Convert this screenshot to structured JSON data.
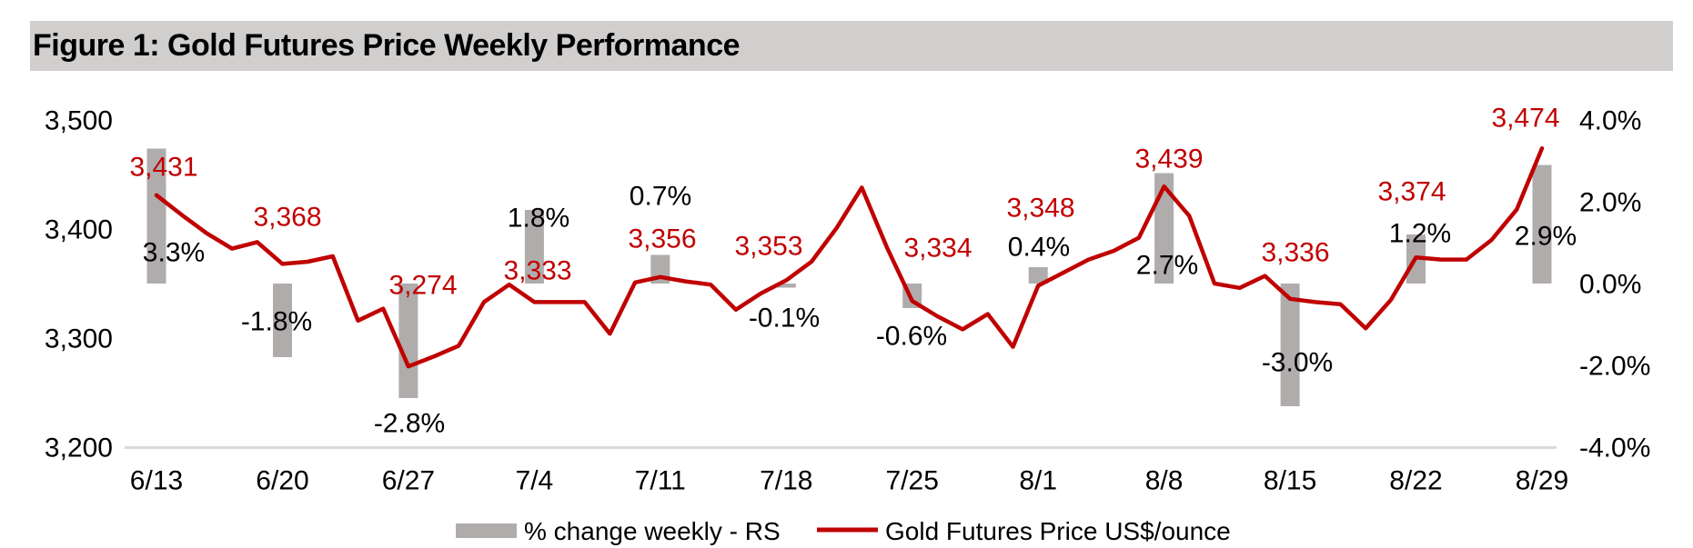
{
  "chart_data": {
    "type": "combo (bar + line, dual axis)",
    "title": "Figure 1: Gold Futures Price Weekly Performance",
    "weeks": [
      "6/13",
      "6/20",
      "6/27",
      "7/4",
      "7/11",
      "7/18",
      "7/25",
      "8/1",
      "8/8",
      "8/15",
      "8/22",
      "8/29"
    ],
    "series": [
      {
        "name": "% change weekly - RS",
        "type": "bar",
        "axis": "right",
        "values": [
          3.3,
          -1.8,
          -2.8,
          1.8,
          0.7,
          -0.1,
          -0.6,
          0.4,
          2.7,
          -3.0,
          1.2,
          2.9
        ],
        "labels": [
          "3.3%",
          "-1.8%",
          "-2.8%",
          "1.8%",
          "0.7%",
          "-0.1%",
          "-0.6%",
          "0.4%",
          "2.7%",
          "-3.0%",
          "1.2%",
          "2.9%"
        ]
      },
      {
        "name": "Gold Futures Price US$/ounce",
        "type": "line",
        "axis": "left",
        "weekly_values": [
          3431,
          3368,
          3274,
          3333,
          3356,
          3353,
          3334,
          3348,
          3439,
          3336,
          3374,
          3474
        ],
        "weekly_labels": [
          "3,431",
          "3,368",
          "3,274",
          "3,333",
          "3,356",
          "3,353",
          "3,334",
          "3,348",
          "3,439",
          "3,336",
          "3,374",
          "3,474"
        ],
        "days_per_week": 5,
        "daily_values": [
          3431,
          3413,
          3396,
          3382,
          3388,
          3368,
          3370,
          3375,
          3316,
          3327,
          3274,
          3283,
          3293,
          3333,
          3349,
          3333,
          3333,
          3333,
          3304,
          3351,
          3356,
          3352,
          3349,
          3326,
          3341,
          3353,
          3370,
          3401,
          3438,
          3383,
          3334,
          3320,
          3308,
          3322,
          3292,
          3348,
          3360,
          3372,
          3380,
          3392,
          3439,
          3412,
          3350,
          3346,
          3357,
          3336,
          3333,
          3331,
          3309,
          3335,
          3374,
          3372,
          3372,
          3390,
          3418,
          3474
        ]
      }
    ],
    "left_axis": {
      "ticks": [
        "3,500",
        "3,400",
        "3,300",
        "3,200"
      ],
      "min": 3200,
      "max": 3500
    },
    "right_axis": {
      "ticks": [
        "4.0%",
        "2.0%",
        "0.0%",
        "-2.0%",
        "-4.0%"
      ],
      "min": -4.0,
      "max": 4.0
    },
    "grid": "off",
    "legend": {
      "position": "bottom",
      "items": [
        {
          "label": "% change weekly - RS",
          "swatch": "bar"
        },
        {
          "label": "Gold Futures Price US$/ounce",
          "swatch": "line"
        }
      ]
    },
    "colors": {
      "line": "#C00000",
      "bar": "#B0ACAC",
      "price_labels": "#C00000",
      "pct_labels": "#000000",
      "axis_line": "#D9D9D9",
      "title_band": "#D1CECE",
      "text": "#000000"
    }
  }
}
